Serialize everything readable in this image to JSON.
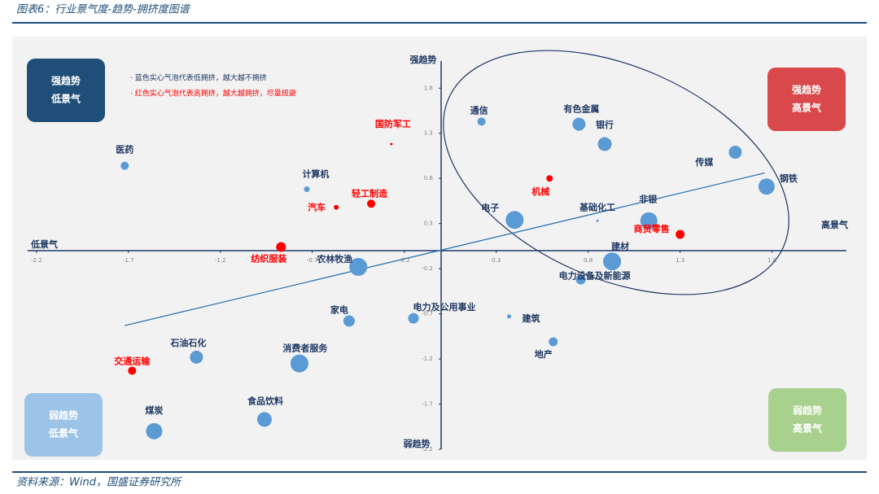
{
  "header": "图表6：行业景气度-趋势-拥挤度图谱",
  "footer": "资料来源：Wind，国盛证券研究所",
  "chart_data": {
    "type": "scatter",
    "notes": [
      "· 蓝色实心气泡代表低拥挤，越大越不拥挤",
      "· 红色实心气泡代表高拥挤，越大越拥挤，尽量规避"
    ],
    "quadrants": [
      [
        "强趋势",
        "低景气"
      ],
      [
        "强趋势",
        "高景气"
      ],
      [
        "弱趋势",
        "低景气"
      ],
      [
        "弱趋势",
        "高景气"
      ]
    ],
    "axis_labels": {
      "top": "强趋势",
      "bottom": "弱趋势",
      "left": "低景气",
      "right": "高景气"
    },
    "xlim": [
      -2.25,
      2.2
    ],
    "ylim": [
      -2.2,
      2.1
    ],
    "xticks": [
      -2.2,
      -1.7,
      -1.2,
      -0.7,
      -0.2,
      0.3,
      0.8,
      1.3,
      1.8
    ],
    "yticks": [
      1.8,
      1.3,
      0.8,
      0.3,
      -0.2,
      -0.7,
      -1.2,
      -1.7,
      -2.2
    ],
    "series": [
      {
        "name": "低拥挤",
        "color": "#5b9bd5",
        "labels": [
          "通信",
          "有色金属",
          "银行",
          "传媒",
          "钢铁",
          "医药",
          "计算机",
          "电子",
          "基础化工",
          "非银",
          "农林牧渔",
          "建材",
          "电力设备及新能源",
          "家电",
          "电力及公用事业",
          "建筑",
          "地产",
          "石油石化",
          "消费者服务",
          "食品饮料",
          "煤炭"
        ],
        "x": [
          0.22,
          0.75,
          0.89,
          1.6,
          1.77,
          -1.72,
          -0.73,
          0.4,
          0.85,
          1.13,
          -0.45,
          0.93,
          0.76,
          -0.5,
          -0.15,
          0.37,
          0.61,
          -1.33,
          -0.77,
          -0.96,
          -1.56
        ],
        "values": [
          1.43,
          1.4,
          1.18,
          1.09,
          0.71,
          0.94,
          0.68,
          0.34,
          0.33,
          0.33,
          -0.18,
          -0.12,
          -0.32,
          -0.78,
          -0.75,
          -0.73,
          -1.01,
          -1.18,
          -1.25,
          -1.87,
          -2.0
        ],
        "sizes": [
          5,
          8,
          8.5,
          8,
          10,
          5,
          3.5,
          11,
          1.5,
          10.5,
          11,
          11,
          6,
          7,
          6.5,
          2.5,
          5.5,
          8,
          11,
          9,
          10
        ]
      },
      {
        "name": "高拥挤",
        "color": "#ff0000",
        "labels": [
          "国防军工",
          "机械",
          "轻工制造",
          "汽车",
          "商贸零售",
          "纺织服装",
          "交通运输"
        ],
        "x": [
          -0.27,
          0.59,
          -0.38,
          -0.57,
          1.3,
          -0.87,
          -1.68
        ],
        "values": [
          1.18,
          0.8,
          0.52,
          0.48,
          0.18,
          0.04,
          -1.33
        ],
        "sizes": [
          1.5,
          4,
          5,
          3,
          5.5,
          6,
          5
        ]
      }
    ],
    "trendline": {
      "color": "#2e75b6",
      "x": [
        -1.72,
        1.76
      ],
      "y": [
        -0.83,
        0.86
      ]
    }
  }
}
